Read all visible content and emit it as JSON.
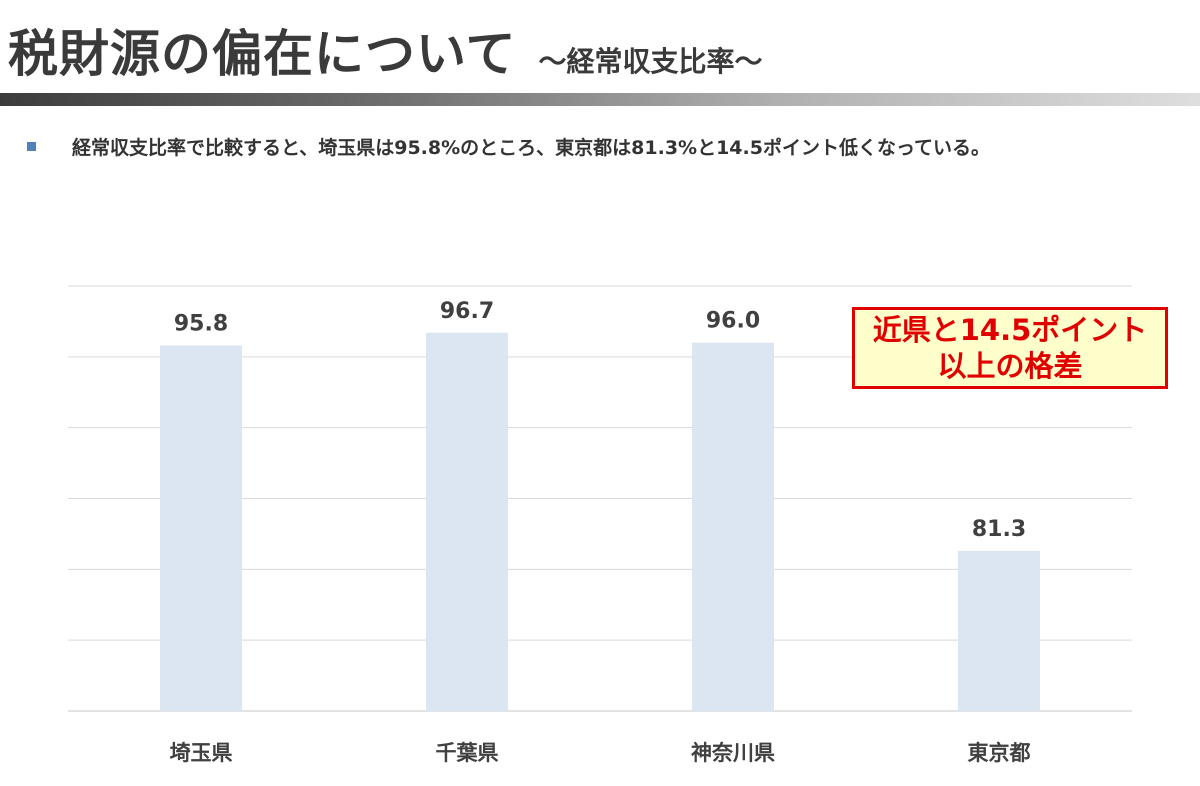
{
  "header": {
    "title": "税財源の偏在について",
    "subtitle": "～経常収支比率～"
  },
  "bullet": {
    "text": "経常収支比率で比較すると、埼玉県は95.8%のところ、東京都は81.3%と14.5ポイント低くなっている。"
  },
  "callout": {
    "line1": "近県と14.5ポイント",
    "line2": "以上の格差",
    "border_color": "#e00000",
    "fill_color": "#ffffcc"
  },
  "chart_data": {
    "type": "bar",
    "title": "",
    "xlabel": "",
    "ylabel": "",
    "categories": [
      "埼玉県",
      "千葉県",
      "神奈川県",
      "東京都"
    ],
    "values": [
      95.8,
      96.7,
      96.0,
      81.3
    ],
    "value_labels": [
      "95.8",
      "96.7",
      "96.0",
      "81.3"
    ],
    "ylim": [
      70,
      100
    ],
    "grid": true,
    "bar_color": "#dce6f2",
    "gridline_color": "#d9d9d9"
  }
}
